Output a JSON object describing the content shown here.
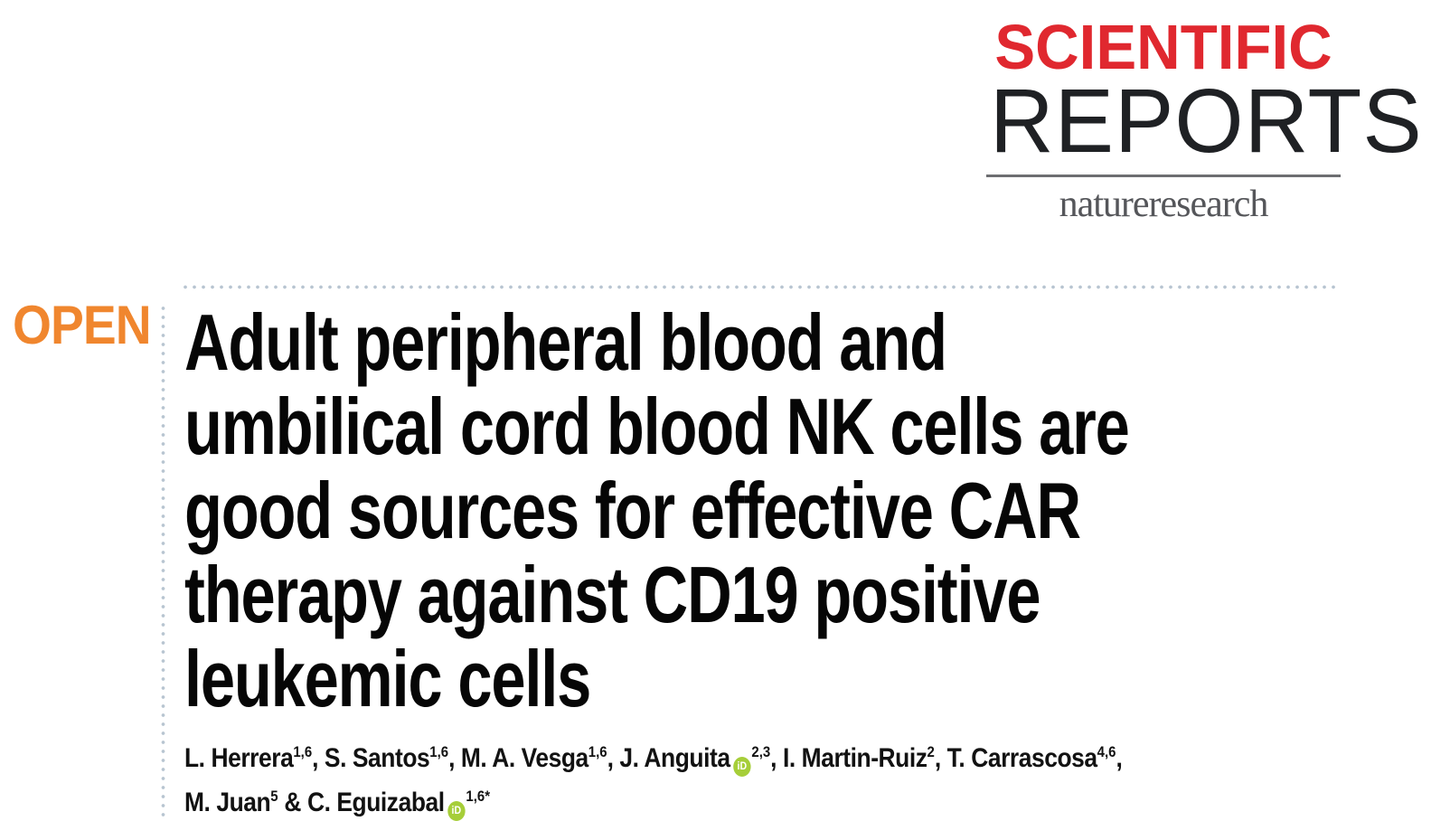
{
  "masthead": {
    "journal_word1": "SCIENTIFIC",
    "journal_word2": "REPORTS",
    "publisher": "natureresearch",
    "colors": {
      "word1_red": "#e0282f",
      "word2_dark": "#1f2124",
      "rule_gray": "#6d6e71",
      "publisher_gray": "#55565a"
    }
  },
  "open_access": {
    "label": "OPEN",
    "color": "#f0862e"
  },
  "article": {
    "title_full": "Adult peripheral blood and umbilical cord blood NK cells are good sources for effective CAR therapy against CD19 positive leukemic cells",
    "title_lines": [
      "Adult peripheral blood and",
      "umbilical cord blood NK cells are",
      "good sources for effective CAR",
      "therapy against CD19 positive",
      "leukemic cells"
    ],
    "author_lines": [
      {
        "segments": [
          {
            "text": "L. Herrera",
            "sup": "1,6",
            "after": ", "
          },
          {
            "text": "S. Santos",
            "sup": "1,6",
            "after": ", "
          },
          {
            "text": "M. A. Vesga",
            "sup": "1,6",
            "after": ", "
          },
          {
            "text": "J. Anguita",
            "orcid": true,
            "sup": "2,3",
            "after": ", "
          },
          {
            "text": "I. Martin-Ruiz",
            "sup": "2",
            "after": ", "
          },
          {
            "text": "T. Carrascosa",
            "sup": "4,6",
            "after": ","
          }
        ]
      },
      {
        "segments": [
          {
            "text": "M. Juan",
            "sup": "5",
            "after": " & "
          },
          {
            "text": "C. Eguizabal",
            "orcid": true,
            "sup": "1,6*",
            "after": ""
          }
        ]
      }
    ]
  },
  "icons": {
    "orcid": {
      "label": "iD",
      "bg": "#a6ce39",
      "fg": "#ffffff"
    }
  },
  "decor": {
    "dot_color": "#b8c5d1",
    "title_color": "#060606",
    "author_color": "#121212",
    "background": "#ffffff"
  }
}
